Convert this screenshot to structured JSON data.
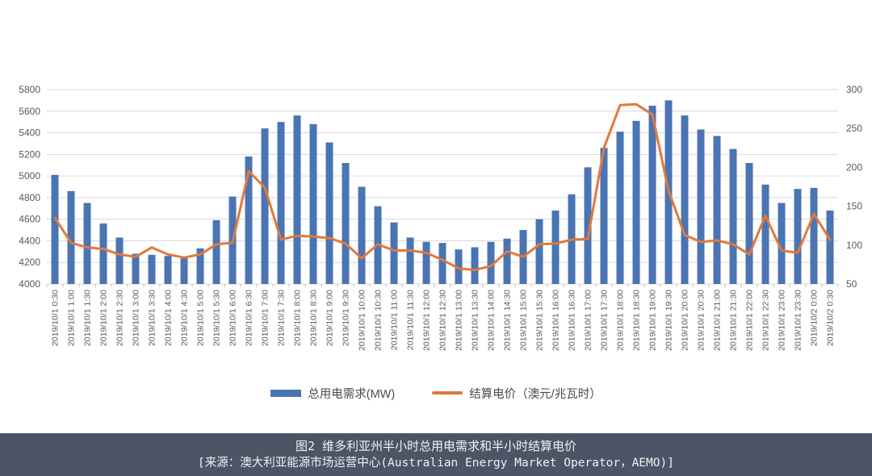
{
  "chart_data": {
    "type": "bar",
    "note": "combo column + line chart, dual y-axes",
    "categories": [
      "2019/10/1 0:30",
      "2019/10/1 1:00",
      "2019/10/1 1:30",
      "2019/10/1 2:00",
      "2019/10/1 2:30",
      "2019/10/1 3:00",
      "2019/10/1 3:30",
      "2019/10/1 4:00",
      "2019/10/1 4:30",
      "2019/10/1 5:00",
      "2019/10/1 5:30",
      "2019/10/1 6:00",
      "2019/10/1 6:30",
      "2019/10/1 7:00",
      "2019/10/1 7:30",
      "2019/10/1 8:00",
      "2019/10/1 8:30",
      "2019/10/1 9:00",
      "2019/10/1 9:30",
      "2019/10/1 10:00",
      "2019/10/1 10:30",
      "2019/10/1 11:00",
      "2019/10/1 11:30",
      "2019/10/1 12:00",
      "2019/10/1 12:30",
      "2019/10/1 13:00",
      "2019/10/1 13:30",
      "2019/10/1 14:00",
      "2019/10/1 14:30",
      "2019/10/1 15:00",
      "2019/10/1 15:30",
      "2019/10/1 16:00",
      "2019/10/1 16:30",
      "2019/10/1 17:00",
      "2019/10/1 17:30",
      "2019/10/1 18:00",
      "2019/10/1 18:30",
      "2019/10/1 19:00",
      "2019/10/1 19:30",
      "2019/10/1 20:00",
      "2019/10/1 20:30",
      "2019/10/1 21:00",
      "2019/10/1 21:30",
      "2019/10/1 22:00",
      "2019/10/1 22:30",
      "2019/10/1 23:00",
      "2019/10/1 23:30",
      "2019/10/2 0:00",
      "2019/10/2 0:30"
    ],
    "series": [
      {
        "name": "总用电需求(MW)",
        "type": "bar",
        "axis": "left",
        "color": "#4a74b2",
        "values": [
          5010,
          4860,
          4750,
          4560,
          4430,
          4280,
          4270,
          4260,
          4240,
          4330,
          4590,
          4810,
          5180,
          5440,
          5500,
          5560,
          5480,
          5310,
          5120,
          4900,
          4720,
          4570,
          4430,
          4390,
          4380,
          4320,
          4340,
          4390,
          4420,
          4500,
          4600,
          4680,
          4830,
          5080,
          5260,
          5410,
          5510,
          5650,
          5700,
          5560,
          5430,
          5370,
          5250,
          5120,
          4920,
          4750,
          4880,
          4890,
          4680
        ]
      },
      {
        "name": "结算电价（澳元/兆瓦时）",
        "type": "line",
        "axis": "right",
        "color": "#e0793b",
        "values": [
          135,
          103,
          97,
          95,
          88,
          85,
          97,
          88,
          84,
          88,
          101,
          103,
          195,
          174,
          107,
          112,
          111,
          109,
          102,
          83,
          101,
          93,
          93,
          90,
          81,
          70,
          68,
          73,
          92,
          85,
          101,
          102,
          107,
          108,
          225,
          280,
          281,
          268,
          170,
          113,
          104,
          106,
          101,
          88,
          138,
          93,
          90,
          140,
          107
        ]
      }
    ],
    "left_axis": {
      "min": 4000,
      "max": 5800,
      "step": 200,
      "ticks": [
        "4000",
        "4200",
        "4400",
        "4600",
        "4800",
        "5000",
        "5200",
        "5400",
        "5600",
        "5800"
      ]
    },
    "right_axis": {
      "min": 50,
      "max": 300,
      "step": 50,
      "ticks": [
        "50",
        "100",
        "150",
        "200",
        "250",
        "300"
      ]
    },
    "grid": true,
    "legend_position": "bottom",
    "title": "",
    "xlabel": "",
    "ylabel": ""
  },
  "legend": {
    "demand_label": "总用电需求(MW)",
    "price_label": "结算电价（澳元/兆瓦时）"
  },
  "caption": {
    "title": "图2 维多利亚州半小时总用电需求和半小时结算电价",
    "source": "[来源：澳大利亚能源市场运营中心(Australian Energy Market Operator，AEMO)]"
  },
  "colors": {
    "bar": "#4a74b2",
    "line": "#e0793b",
    "grid": "#d9d9d9",
    "axis_text": "#595959",
    "caption_bg": "#4b5566",
    "caption_text": "#eef1f4"
  }
}
